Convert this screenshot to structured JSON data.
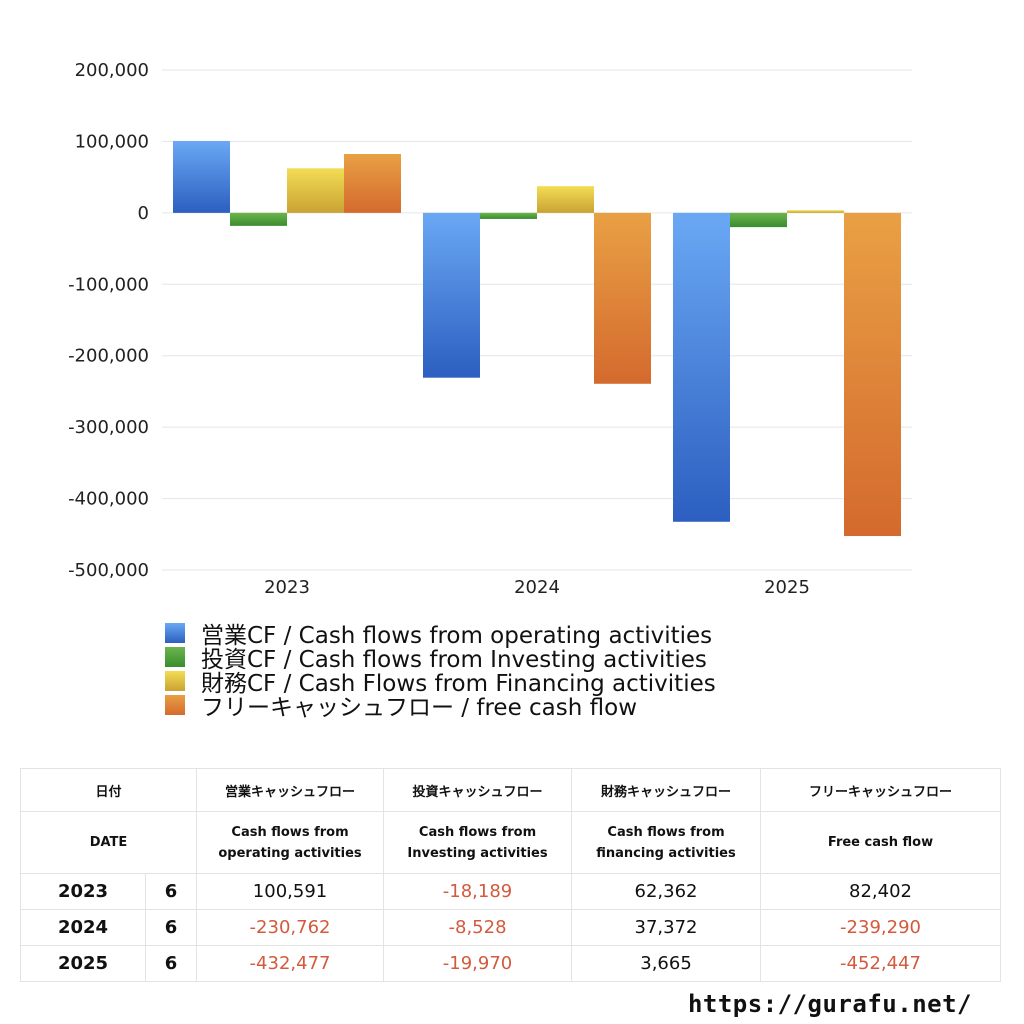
{
  "chart_data": {
    "type": "bar",
    "categories": [
      "2023",
      "2024",
      "2025"
    ],
    "ylim": [
      -500000,
      200000
    ],
    "yticks": [
      200000,
      100000,
      0,
      -100000,
      -200000,
      -300000,
      -400000,
      -500000
    ],
    "ytick_labels": [
      "200,000",
      "100,000",
      "0",
      "-100,000",
      "-200,000",
      "-300,000",
      "-400,000",
      "-500,000"
    ],
    "series": [
      {
        "name": "営業CF / Cash flows from operating activities",
        "values": [
          100591,
          -230762,
          -432477
        ],
        "color_top": "#6aa8f4",
        "color_bottom": "#2c5fc0"
      },
      {
        "name": "投資CF / Cash flows from Investing activities",
        "values": [
          -18189,
          -8528,
          -19970
        ],
        "color_top": "#6cb54d",
        "color_bottom": "#3a8c2f"
      },
      {
        "name": "財務CF / Cash Flows from Financing activities",
        "values": [
          62362,
          37372,
          3665
        ],
        "color_top": "#f3dd55",
        "color_bottom": "#c9a233"
      },
      {
        "name": "フリーキャッシュフロー / free cash flow",
        "values": [
          82402,
          -239290,
          -452447
        ],
        "color_top": "#e9a044",
        "color_bottom": "#d46a2e"
      }
    ]
  },
  "table": {
    "headers_ja": [
      "日付",
      "営業キャッシュフロー",
      "投資キャッシュフロー",
      "財務キャッシュフロー",
      "フリーキャッシュフロー"
    ],
    "headers_en": [
      "DATE",
      "Cash flows from\noperating activities",
      "Cash flows from\nInvesting activities",
      "Cash flows from\nfinancing activities",
      "Free cash flow"
    ],
    "rows": [
      {
        "year": "2023",
        "month": "6",
        "values": [
          "100,591",
          "-18,189",
          "62,362",
          "82,402"
        ]
      },
      {
        "year": "2024",
        "month": "6",
        "values": [
          "-230,762",
          "-8,528",
          "37,372",
          "-239,290"
        ]
      },
      {
        "year": "2025",
        "month": "6",
        "values": [
          "-432,477",
          "-19,970",
          "3,665",
          "-452,447"
        ]
      }
    ]
  },
  "footer": {
    "url": "https://gurafu.net/"
  }
}
